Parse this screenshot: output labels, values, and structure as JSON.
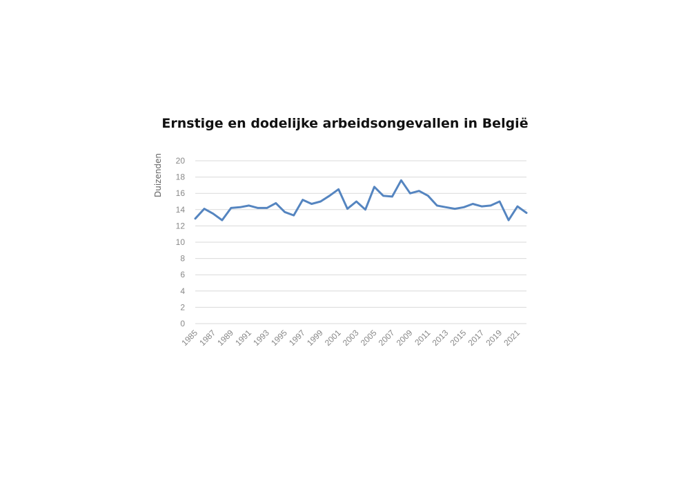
{
  "chart_data": {
    "type": "line",
    "title": "Ernstige en dodelijke arbeidsongevallen in België",
    "xlabel": "",
    "ylabel": "Duizenden",
    "ylim": [
      0,
      20
    ],
    "yticks": [
      "0",
      "2",
      "4",
      "6",
      "8",
      "10",
      "12",
      "14",
      "16",
      "18",
      "20"
    ],
    "xtick_labels": [
      "1985",
      "1987",
      "1989",
      "1991",
      "1993",
      "1995",
      "1997",
      "1999",
      "2001",
      "2003",
      "2005",
      "2007",
      "2009",
      "2011",
      "2013",
      "2015",
      "2017",
      "2019",
      "2021"
    ],
    "grid": true,
    "color": "#5585c0",
    "x": [
      1985,
      1986,
      1987,
      1988,
      1989,
      1990,
      1991,
      1992,
      1993,
      1994,
      1995,
      1996,
      1997,
      1998,
      1999,
      2000,
      2001,
      2002,
      2003,
      2004,
      2005,
      2006,
      2007,
      2008,
      2009,
      2010,
      2011,
      2012,
      2013,
      2014,
      2015,
      2016,
      2017,
      2018,
      2019,
      2020,
      2021,
      2022
    ],
    "values": [
      12.9,
      14.1,
      13.5,
      12.7,
      14.2,
      14.3,
      14.5,
      14.2,
      14.2,
      14.8,
      13.7,
      13.3,
      15.2,
      14.7,
      15.0,
      15.7,
      16.5,
      14.1,
      15.0,
      14.0,
      16.8,
      15.7,
      15.6,
      17.6,
      16.0,
      16.3,
      15.7,
      14.5,
      14.3,
      14.1,
      14.3,
      14.7,
      14.4,
      14.5,
      15.0,
      12.7,
      14.4,
      13.6
    ]
  }
}
